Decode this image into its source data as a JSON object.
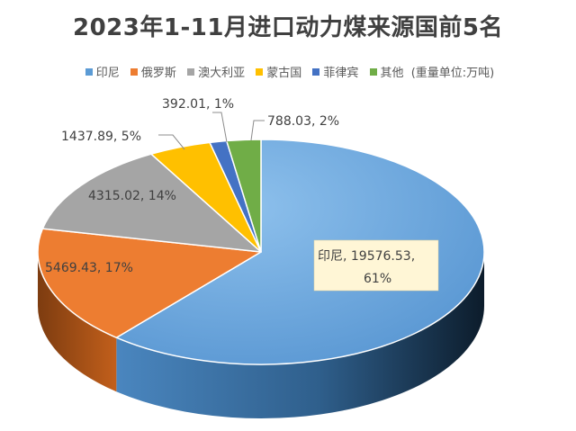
{
  "chart_data": {
    "type": "pie",
    "title": "2023年1-11月进口动力煤来源国前5名",
    "legend_position": "top",
    "unit_note": "(重量单位:万吨)",
    "categories": [
      "印尼",
      "俄罗斯",
      "澳大利亚",
      "蒙古国",
      "菲律宾",
      "其他"
    ],
    "values": [
      19576.53,
      5469.43,
      4315.02,
      1437.89,
      392.01,
      788.03
    ],
    "percent_labels": [
      "61%",
      "17%",
      "14%",
      "5%",
      "1%",
      "2%"
    ],
    "data_labels": [
      "印尼, 19576.53,",
      "5469.43, 17%",
      "4315.02, 14%",
      "1437.89, 5%",
      "392.01, 1%",
      "788.03, 2%"
    ],
    "colors": [
      "#5B9BD5",
      "#ED7D31",
      "#A5A5A5",
      "#FFC000",
      "#4472C4",
      "#70AD47"
    ],
    "style": "3d-pie"
  }
}
